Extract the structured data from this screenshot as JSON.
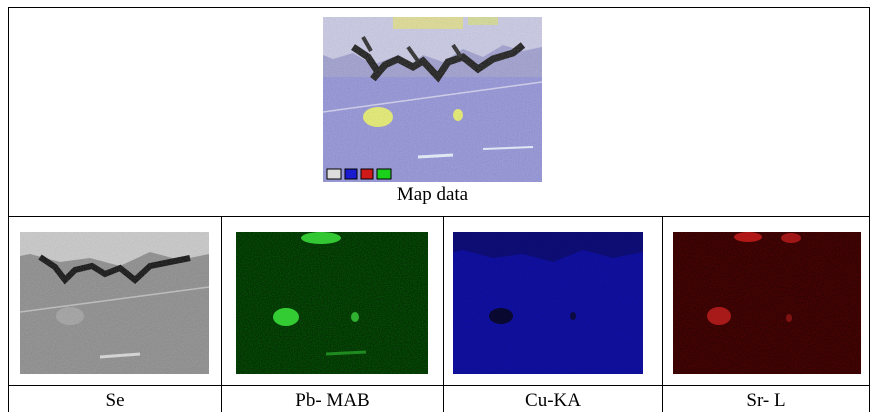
{
  "composite": {
    "caption": "Map data",
    "legend_icons": [
      "grayscale-swatch-icon",
      "blue-swatch-icon",
      "red-swatch-icon",
      "green-swatch-icon"
    ]
  },
  "panels": [
    {
      "label": "Se",
      "tint": "#9a9a9a"
    },
    {
      "label": "Pb- MAB",
      "tint": "#1fa81f"
    },
    {
      "label": "Cu-KA",
      "tint": "#1f1fb0"
    },
    {
      "label": "Sr- L",
      "tint": "#7a1212"
    }
  ]
}
